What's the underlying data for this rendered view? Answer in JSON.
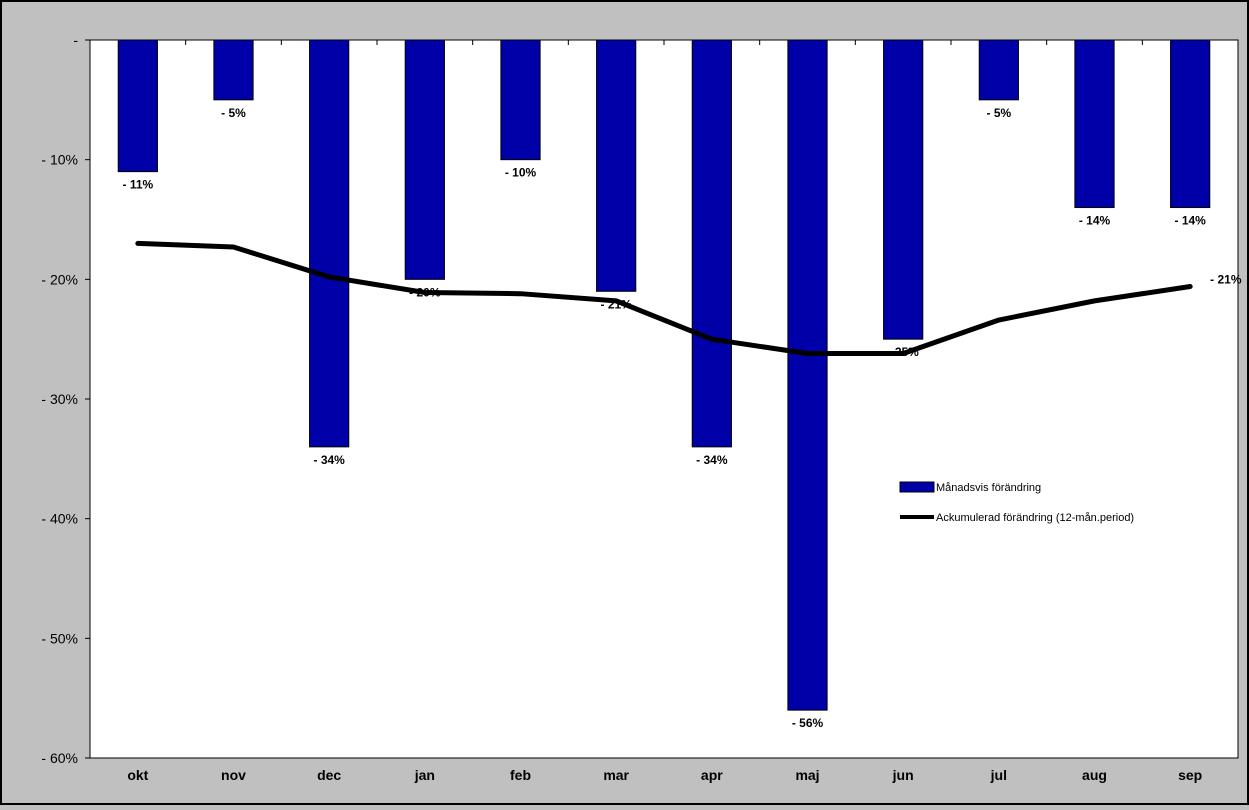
{
  "chart_data": {
    "type": "bar",
    "categories": [
      "okt",
      "nov",
      "dec",
      "jan",
      "feb",
      "mar",
      "apr",
      "maj",
      "jun",
      "jul",
      "aug",
      "sep"
    ],
    "series": [
      {
        "name": "Månadsvis förändring",
        "type": "bar",
        "color": "#0000a8",
        "values": [
          -11,
          -5,
          -34,
          -20,
          -10,
          -21,
          -34,
          -56,
          -25,
          -5,
          -14,
          -14
        ],
        "labels": [
          "- 11%",
          "- 5%",
          "- 34%",
          "- 20%",
          "- 10%",
          "- 21%",
          "- 34%",
          "- 56%",
          "- 25%",
          "- 5%",
          "- 14%",
          "- 14%"
        ]
      },
      {
        "name": "Ackumulerad förändring (12-mån.period)",
        "type": "line",
        "color": "#000000",
        "values": [
          -17.0,
          -17.3,
          -19.8,
          -21.1,
          -21.2,
          -21.8,
          -25.0,
          -26.2,
          -26.2,
          -23.4,
          -21.8,
          -20.6
        ],
        "last_label": "- 21%"
      }
    ],
    "ylim": [
      -60,
      0
    ],
    "yticks": [
      0,
      -10,
      -20,
      -30,
      -40,
      -50,
      -60
    ],
    "ytick_labels": [
      "-",
      "- 10%",
      "- 20%",
      "- 30%",
      "- 40%",
      "- 50%",
      "- 60%"
    ],
    "grid": false,
    "legend_position": "right",
    "plot_background": "#ffffff",
    "frame_background": "#c0c0c0"
  }
}
